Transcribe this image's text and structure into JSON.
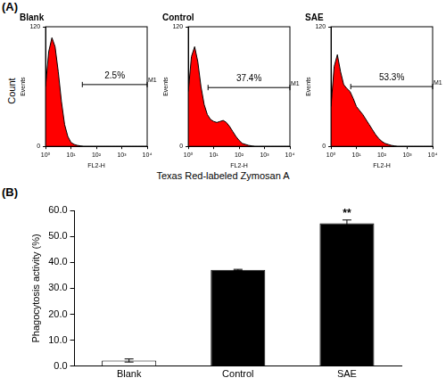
{
  "figure": {
    "panel_labels": [
      "(A)",
      "(B)"
    ],
    "y_label": "Count",
    "x_label": "Texas Red-labeled Zymosan A"
  },
  "chart_data": [
    {
      "type": "area",
      "title": "Blank",
      "x_label": "FL2-H",
      "y_label": "Events",
      "log": "x",
      "grid": false,
      "color": "#ff0000",
      "x": [
        1,
        1.33,
        1.78,
        2.37,
        3.16,
        4.22,
        5.62,
        7.5,
        10,
        13.3,
        17.8,
        23.7,
        31.6,
        42.2,
        56.2,
        75,
        100,
        133,
        178,
        237,
        316,
        422,
        562,
        750,
        1000,
        1330,
        1780,
        2370,
        3160,
        4220,
        5620,
        7500,
        10000
      ],
      "values": [
        60,
        95,
        109,
        100,
        75,
        45,
        22,
        10,
        4,
        2,
        1,
        0.5,
        0,
        0,
        0,
        0,
        0,
        0,
        0,
        0,
        0,
        0,
        0,
        0,
        0,
        0,
        0,
        0,
        0,
        0,
        0,
        0,
        0
      ],
      "xlim": [
        1,
        10000
      ],
      "xticks": [
        {
          "value": 1,
          "label": "10⁰"
        },
        {
          "value": 10,
          "label": "10¹"
        },
        {
          "value": 100,
          "label": "10²"
        },
        {
          "value": 1000,
          "label": "10³"
        },
        {
          "value": 10000,
          "label": "10⁴"
        }
      ],
      "ylim": [
        0,
        120
      ],
      "yticks": [
        0,
        120
      ],
      "gate": {
        "label": "M1",
        "percent": "2.5%",
        "range": [
          28,
          10000
        ],
        "level": 62
      }
    },
    {
      "type": "area",
      "title": "Control",
      "x_label": "FL2-H",
      "y_label": "Events",
      "log": "x",
      "grid": false,
      "color": "#ff0000",
      "x": [
        1,
        1.33,
        1.78,
        2.37,
        3.16,
        4.22,
        5.62,
        7.5,
        10,
        13.3,
        17.8,
        23.7,
        31.6,
        42.2,
        56.2,
        75,
        100,
        133,
        178,
        237,
        316,
        422,
        562,
        750,
        1000,
        1330,
        1780,
        2370,
        3160,
        4220,
        5620,
        7500,
        10000
      ],
      "values": [
        55,
        90,
        100,
        85,
        60,
        42,
        32,
        27,
        25,
        24,
        25,
        26,
        24,
        20,
        15,
        10,
        6,
        3,
        2,
        1,
        0.5,
        0,
        0,
        0,
        0,
        0,
        0,
        0,
        0,
        0,
        0,
        0,
        0
      ],
      "xlim": [
        1,
        10000
      ],
      "xticks": [
        {
          "value": 1,
          "label": "10⁰"
        },
        {
          "value": 10,
          "label": "10¹"
        },
        {
          "value": 100,
          "label": "10²"
        },
        {
          "value": 1000,
          "label": "10³"
        },
        {
          "value": 10000,
          "label": "10⁴"
        }
      ],
      "ylim": [
        0,
        120
      ],
      "yticks": [
        0,
        120
      ],
      "gate": {
        "label": "M1",
        "percent": "37.4%",
        "range": [
          6,
          10000
        ],
        "level": 59
      }
    },
    {
      "type": "area",
      "title": "SAE",
      "x_label": "FL2-H",
      "y_label": "Events",
      "log": "x",
      "grid": false,
      "color": "#ff0000",
      "x": [
        1,
        1.33,
        1.78,
        2.37,
        3.16,
        4.22,
        5.62,
        7.5,
        10,
        13.3,
        17.8,
        23.7,
        31.6,
        42.2,
        56.2,
        75,
        100,
        133,
        178,
        237,
        316,
        422,
        562,
        750,
        1000,
        1330,
        1780,
        2370,
        3160,
        4220,
        5620,
        7500,
        10000
      ],
      "values": [
        40,
        80,
        92,
        75,
        62,
        58,
        55,
        48,
        40,
        36,
        32,
        27,
        22,
        17,
        12,
        8,
        5,
        3,
        2,
        1,
        0.5,
        0,
        0,
        0,
        0,
        0,
        0,
        0,
        0,
        0,
        0,
        0,
        0
      ],
      "xlim": [
        1,
        10000
      ],
      "xticks": [
        {
          "value": 1,
          "label": "10⁰"
        },
        {
          "value": 10,
          "label": "10¹"
        },
        {
          "value": 100,
          "label": "10²"
        },
        {
          "value": 1000,
          "label": "10³"
        },
        {
          "value": 10000,
          "label": "10⁴"
        }
      ],
      "ylim": [
        0,
        120
      ],
      "yticks": [
        0,
        120
      ],
      "gate": {
        "label": "M1",
        "percent": "53.3%",
        "range": [
          6,
          10000
        ],
        "level": 60
      }
    },
    {
      "type": "bar",
      "y_label": "Phagocytosis activity (%)",
      "grid": false,
      "categories": [
        "Blank",
        "Control",
        "SAE"
      ],
      "values": [
        2.2,
        37.1,
        55.0
      ],
      "errors": [
        0.6,
        0.2,
        1.3
      ],
      "colors": [
        "#ffffff",
        "#000000",
        "#000000"
      ],
      "ylim": [
        0,
        60
      ],
      "yticks": [
        {
          "value": 0,
          "label": "0.0"
        },
        {
          "value": 10,
          "label": "10.0"
        },
        {
          "value": 20,
          "label": "20.0"
        },
        {
          "value": 30,
          "label": "30.0"
        },
        {
          "value": 40,
          "label": "40.0"
        },
        {
          "value": 50,
          "label": "50.0"
        },
        {
          "value": 60,
          "label": "60.0"
        }
      ],
      "annotations": [
        {
          "category": "SAE",
          "text": "**"
        }
      ]
    }
  ]
}
